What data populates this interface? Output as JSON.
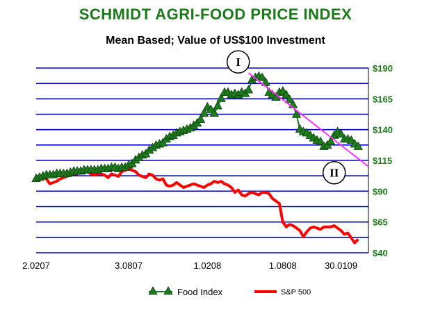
{
  "chart_data": {
    "type": "line",
    "title": "SCHMIDT AGRI-FOOD PRICE INDEX",
    "subtitle": "Mean Based; Value of US$100 Investment",
    "yticks": [
      "$190",
      "$165",
      "$140",
      "$115",
      "$90",
      "$65",
      "$40"
    ],
    "ylim": [
      40,
      190
    ],
    "xticks": [
      "2.0207",
      "3.0807",
      "1.0208",
      "1.0808",
      "30.0109"
    ],
    "colors": {
      "food": "#1e7b1e",
      "sp500": "#ff0000",
      "trend": "#ff33ff",
      "grid": "#0000cc",
      "title": "#1a7a1a"
    },
    "grid": true,
    "legend": "bottom",
    "series": [
      {
        "name": "Food Index",
        "marker": "triangle",
        "x": [
          0,
          1,
          2,
          3,
          4,
          5,
          6,
          7,
          8,
          9,
          10,
          11,
          12,
          13,
          14,
          15,
          16,
          17,
          18,
          19,
          20,
          21,
          22,
          23,
          24,
          25,
          26,
          27,
          28,
          29,
          30,
          31,
          32,
          33,
          34,
          35,
          36,
          37,
          38,
          39,
          40,
          41,
          42,
          43,
          44,
          45,
          46,
          47,
          48,
          49,
          50,
          51,
          52,
          53,
          54,
          55,
          56,
          57,
          58,
          59,
          60,
          61,
          62,
          63,
          64,
          65,
          66,
          67,
          68,
          69,
          70,
          71,
          72,
          73,
          74,
          75,
          76,
          77,
          78,
          79,
          80,
          81,
          82,
          83,
          84,
          85,
          86,
          87,
          88,
          89,
          90,
          91,
          92,
          93,
          94
        ],
        "values": [
          100,
          101,
          102,
          103,
          103,
          103,
          104,
          104,
          104,
          104,
          105,
          106,
          106,
          106,
          107,
          107,
          107,
          107,
          107,
          108,
          108,
          108,
          109,
          109,
          108,
          109,
          109,
          111,
          112,
          115,
          117,
          119,
          120,
          123,
          125,
          127,
          128,
          129,
          132,
          134,
          135,
          137,
          138,
          139,
          140,
          141,
          143,
          145,
          148,
          153,
          158,
          156,
          153,
          159,
          165,
          170,
          170,
          168,
          169,
          168,
          170,
          169,
          172,
          180,
          182,
          183,
          182,
          178,
          170,
          168,
          166,
          170,
          171,
          168,
          164,
          160,
          152,
          140,
          138,
          137,
          135,
          133,
          131,
          130,
          126,
          127,
          130,
          135,
          138,
          136,
          132,
          132,
          131,
          128,
          126
        ]
      },
      {
        "name": "S&P 500",
        "marker": "none",
        "x": [
          0,
          1,
          2,
          3,
          4,
          5,
          6,
          7,
          8,
          9,
          10,
          11,
          12,
          13,
          14,
          15,
          16,
          17,
          18,
          19,
          20,
          21,
          22,
          23,
          24,
          25,
          26,
          27,
          28,
          29,
          30,
          31,
          32,
          33,
          34,
          35,
          36,
          37,
          38,
          39,
          40,
          41,
          42,
          43,
          44,
          45,
          46,
          47,
          48,
          49,
          50,
          51,
          52,
          53,
          54,
          55,
          56,
          57,
          58,
          59,
          60,
          61,
          62,
          63,
          64,
          65,
          66,
          67,
          68,
          69,
          70,
          71,
          72,
          73,
          74,
          75,
          76,
          77,
          78,
          79,
          80,
          81,
          82,
          83,
          84,
          85,
          86,
          87,
          88,
          89,
          90,
          91,
          92,
          93,
          94
        ],
        "values": [
          100,
          101,
          101,
          100,
          96,
          97,
          98,
          100,
          101,
          102,
          103,
          104,
          104,
          105,
          105,
          106,
          104,
          103,
          104,
          104,
          103,
          101,
          104,
          103,
          102,
          106,
          107,
          108,
          107,
          106,
          103,
          102,
          101,
          104,
          103,
          100,
          99,
          100,
          95,
          94,
          95,
          97,
          95,
          93,
          94,
          95,
          96,
          95,
          94,
          93,
          95,
          96,
          98,
          97,
          98,
          96,
          95,
          93,
          89,
          91,
          87,
          86,
          88,
          89,
          88,
          87,
          89,
          89,
          88,
          84,
          82,
          80,
          65,
          61,
          63,
          62,
          60,
          58,
          53,
          57,
          60,
          61,
          60,
          59,
          61,
          61,
          61,
          62,
          60,
          58,
          55,
          56,
          52,
          48,
          51
        ]
      },
      {
        "name": "",
        "type": "trendline",
        "x": [
          62,
          97
        ],
        "values": [
          186,
          110
        ]
      }
    ],
    "annotations": [
      {
        "text": "I",
        "x": 59,
        "y": 195
      },
      {
        "text": "II",
        "x": 87,
        "y": 105
      }
    ],
    "xlim": [
      0,
      97
    ]
  }
}
